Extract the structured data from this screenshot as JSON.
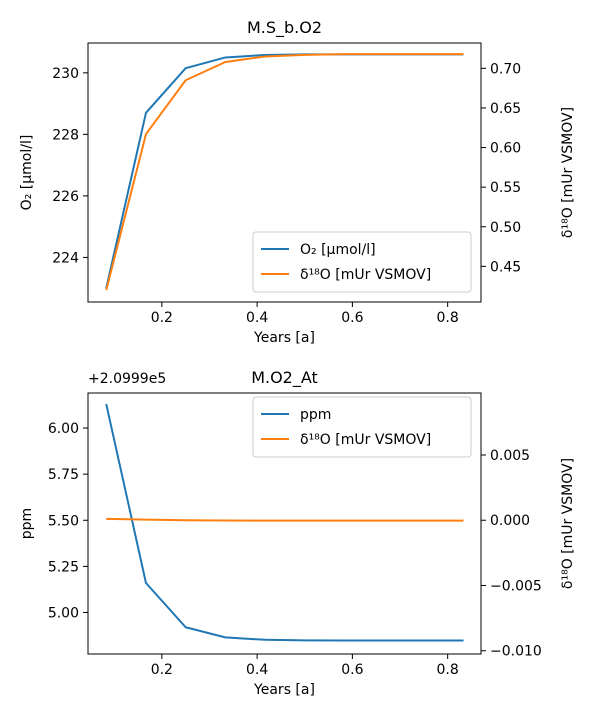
{
  "colors": {
    "blue": "#1f77b4",
    "orange": "#ff7f0e"
  },
  "chart_data": [
    {
      "type": "line",
      "title": "M.S_b.O2",
      "xlabel": "Years [a]",
      "ylabel": "O₂ [µmol/l]",
      "ylabel2": "δ¹⁸O [mUr VSMOV]",
      "xlim": [
        0.045,
        0.87
      ],
      "ylim": [
        222.55,
        230.97
      ],
      "ylim2": [
        0.405,
        0.732
      ],
      "xticks": [
        0.2,
        0.4,
        0.6,
        0.8
      ],
      "yticks": [
        224,
        226,
        228,
        230
      ],
      "yticks2": [
        0.45,
        0.5,
        0.55,
        0.6,
        0.65,
        0.7
      ],
      "legend_position": "lower-right",
      "x": [
        0.0833,
        0.1667,
        0.25,
        0.3333,
        0.4167,
        0.5,
        0.5833,
        0.6667,
        0.75,
        0.8333
      ],
      "series": [
        {
          "name": "O₂ [µmol/l]",
          "axis": "left",
          "color": "#1f77b4",
          "values": [
            223.0,
            228.7,
            230.15,
            230.5,
            230.58,
            230.6,
            230.6,
            230.6,
            230.6,
            230.6
          ]
        },
        {
          "name": "δ¹⁸O [mUr VSMOV]",
          "axis": "right",
          "color": "#ff7f0e",
          "values": [
            0.42,
            0.617,
            0.685,
            0.708,
            0.715,
            0.717,
            0.718,
            0.718,
            0.718,
            0.718
          ]
        }
      ]
    },
    {
      "type": "line",
      "title": "M.O2_At",
      "offset_label": "+2.0999e5",
      "xlabel": "Years [a]",
      "ylabel": "ppm",
      "ylabel2": "δ¹⁸O [mUr VSMOV]",
      "xlim": [
        0.045,
        0.87
      ],
      "ylim": [
        4.775,
        6.19
      ],
      "ylim2": [
        -0.01025,
        0.00975
      ],
      "xticks": [
        0.2,
        0.4,
        0.6,
        0.8
      ],
      "yticks": [
        5.0,
        5.25,
        5.5,
        5.75,
        6.0
      ],
      "yticks2": [
        -0.01,
        -0.005,
        0.0,
        0.005
      ],
      "legend_position": "upper-right",
      "x": [
        0.0833,
        0.1667,
        0.25,
        0.3333,
        0.4167,
        0.5,
        0.5833,
        0.6667,
        0.75,
        0.8333
      ],
      "series": [
        {
          "name": "ppm",
          "axis": "left",
          "color": "#1f77b4",
          "values": [
            6.13,
            5.16,
            4.92,
            4.865,
            4.852,
            4.849,
            4.848,
            4.848,
            4.848,
            4.848
          ]
        },
        {
          "name": "δ¹⁸O [mUr VSMOV]",
          "axis": "right",
          "color": "#ff7f0e",
          "values": [
            0.0001,
            5e-05,
            0.0,
            -2e-05,
            -3e-05,
            -3e-05,
            -3e-05,
            -3e-05,
            -3e-05,
            -3e-05
          ]
        }
      ]
    }
  ]
}
